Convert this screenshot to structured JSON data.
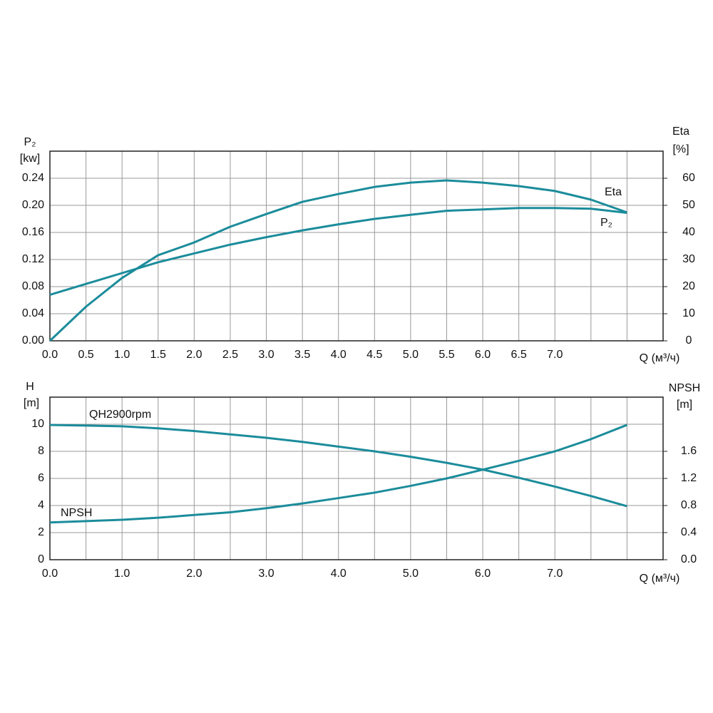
{
  "chart_data": [
    {
      "type": "line",
      "xlabel": "Q (м³/ч)",
      "ylabel": [
        "P₂",
        "[kw]"
      ],
      "y2label": [
        "Eta",
        "[%]"
      ],
      "x": [
        0,
        0.5,
        1,
        1.5,
        2,
        2.5,
        3,
        3.5,
        4,
        4.5,
        5,
        5.5,
        6,
        6.5,
        7,
        7.5,
        8
      ],
      "series": [
        {
          "name": "Eta",
          "color": "#1b8c9b",
          "axis": "y2",
          "values": [
            0,
            12.6,
            23.2,
            31.6,
            36.3,
            42.1,
            46.8,
            51.3,
            54.2,
            56.8,
            58.4,
            59.2,
            58.4,
            57.1,
            55.3,
            52.1,
            47.4
          ]
        },
        {
          "name": "P₂",
          "color": "#1b8c9b",
          "values": [
            0.068,
            0.084,
            0.1,
            0.116,
            0.129,
            0.142,
            0.153,
            0.163,
            0.172,
            0.18,
            0.186,
            0.192,
            0.194,
            0.196,
            0.196,
            0.195,
            0.189
          ]
        }
      ],
      "xlim": [
        0,
        8.5
      ],
      "ylim": [
        0,
        0.28
      ],
      "y2lim": [
        0,
        70
      ],
      "xticks": [
        {
          "value": 0,
          "label": "0.0"
        },
        0.5,
        {
          "value": 1,
          "label": "1.0"
        },
        1.5,
        {
          "value": 2,
          "label": "2.0"
        },
        2.5,
        {
          "value": 3,
          "label": "3.0"
        },
        3.5,
        {
          "value": 4,
          "label": "4.0"
        },
        4.5,
        {
          "value": 5,
          "label": "5.0"
        },
        5.5,
        {
          "value": 6,
          "label": "6.0"
        },
        6.5,
        {
          "value": 7,
          "label": "7.0"
        },
        {
          "value": 7.5,
          "label": null
        },
        {
          "value": 8,
          "label": null
        }
      ],
      "yticks": [
        {
          "value": 0,
          "label": "0.00"
        },
        {
          "value": 0.04,
          "label": "0.04"
        },
        {
          "value": 0.08,
          "label": "0.08"
        },
        {
          "value": 0.12,
          "label": "0.12"
        },
        {
          "value": 0.16,
          "label": "0.16"
        },
        {
          "value": 0.2,
          "label": "0.20"
        },
        {
          "value": 0.24,
          "label": "0.24"
        }
      ],
      "y2ticks": [
        0,
        10,
        20,
        30,
        40,
        50,
        60
      ],
      "grid": true
    },
    {
      "type": "line",
      "xlabel": "Q (м³/ч)",
      "ylabel": [
        "H",
        "[m]"
      ],
      "y2label": [
        "NPSH",
        "[m]"
      ],
      "x": [
        0,
        0.5,
        1,
        1.5,
        2,
        2.5,
        3,
        3.5,
        4,
        4.5,
        5,
        5.5,
        6,
        6.5,
        7,
        7.5,
        8
      ],
      "series": [
        {
          "name": "QH2900rpm",
          "color": "#1b8c9b",
          "values": [
            9.95,
            9.9,
            9.85,
            9.7,
            9.5,
            9.25,
            9.0,
            8.7,
            8.35,
            8.0,
            7.6,
            7.15,
            6.65,
            6.05,
            5.4,
            4.7,
            3.95
          ]
        },
        {
          "name": "NPSH",
          "color": "#1b8c9b",
          "axis": "y2",
          "values": [
            0.55,
            0.57,
            0.59,
            0.62,
            0.66,
            0.7,
            0.76,
            0.83,
            0.91,
            0.99,
            1.09,
            1.2,
            1.33,
            1.46,
            1.6,
            1.78,
            1.99
          ]
        }
      ],
      "xlim": [
        0,
        8.5
      ],
      "ylim": [
        0,
        12
      ],
      "y2lim": [
        0,
        2.4
      ],
      "xticks": [
        {
          "value": 0,
          "label": "0.0"
        },
        {
          "value": 0.5,
          "label": null
        },
        {
          "value": 1,
          "label": "1.0"
        },
        {
          "value": 1.5,
          "label": null
        },
        {
          "value": 2,
          "label": "2.0"
        },
        {
          "value": 2.5,
          "label": null
        },
        {
          "value": 3,
          "label": "3.0"
        },
        {
          "value": 3.5,
          "label": null
        },
        {
          "value": 4,
          "label": "4.0"
        },
        {
          "value": 4.5,
          "label": null
        },
        {
          "value": 5,
          "label": "5.0"
        },
        {
          "value": 5.5,
          "label": null
        },
        {
          "value": 6,
          "label": "6.0"
        },
        {
          "value": 6.5,
          "label": null
        },
        {
          "value": 7,
          "label": "7.0"
        },
        {
          "value": 7.5,
          "label": null
        },
        {
          "value": 8,
          "label": null
        }
      ],
      "yticks": [
        0,
        2,
        4,
        6,
        8,
        10
      ],
      "y2ticks": [
        {
          "value": 0,
          "label": "0.0"
        },
        {
          "value": 0.4,
          "label": "0.4"
        },
        {
          "value": 0.8,
          "label": "0.8"
        },
        {
          "value": 1.2,
          "label": "1.2"
        },
        {
          "value": 1.6,
          "label": "1.6"
        }
      ],
      "grid": true
    }
  ]
}
